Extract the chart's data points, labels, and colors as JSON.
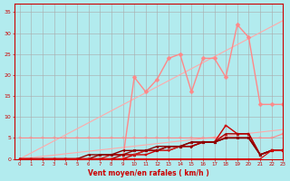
{
  "background_color": "#b2ebee",
  "grid_color": "#aaaaaa",
  "xlabel": "Vent moyen/en rafales ( km/h )",
  "xlabel_color": "#cc0000",
  "tick_color": "#cc0000",
  "x_values": [
    0,
    1,
    2,
    3,
    4,
    5,
    6,
    7,
    8,
    9,
    10,
    11,
    12,
    13,
    14,
    15,
    16,
    17,
    18,
    19,
    20,
    21,
    22,
    23
  ],
  "ylim": [
    0,
    37
  ],
  "xlim": [
    -0.5,
    23
  ],
  "yticks": [
    0,
    5,
    10,
    15,
    20,
    25,
    30,
    35
  ],
  "series": [
    {
      "y": [
        0,
        1.43,
        2.87,
        4.3,
        5.74,
        7.17,
        8.61,
        10.04,
        11.48,
        12.91,
        14.35,
        15.78,
        17.22,
        18.65,
        20.09,
        21.52,
        22.96,
        24.39,
        25.83,
        27.26,
        28.7,
        30.13,
        31.57,
        33.0
      ],
      "color": "#ffaaaa",
      "linewidth": 0.8,
      "marker": null,
      "markersize": 0
    },
    {
      "y": [
        0,
        0.3,
        0.61,
        0.91,
        1.22,
        1.52,
        1.83,
        2.13,
        2.43,
        2.74,
        3.04,
        3.35,
        3.65,
        3.96,
        4.26,
        4.57,
        4.87,
        5.17,
        5.48,
        5.78,
        6.09,
        6.39,
        6.7,
        7.0
      ],
      "color": "#ffaaaa",
      "linewidth": 0.8,
      "marker": null,
      "markersize": 0
    },
    {
      "y": [
        5,
        5,
        5,
        5,
        5,
        5,
        5,
        5,
        5,
        5,
        5,
        5,
        5,
        5,
        5,
        5,
        5,
        5,
        5,
        5,
        5,
        5,
        5,
        6
      ],
      "color": "#ff8888",
      "linewidth": 0.8,
      "marker": "+",
      "markersize": 3
    },
    {
      "y": [
        0,
        0,
        0,
        0,
        0,
        0,
        0,
        0,
        0,
        0,
        19.5,
        16,
        19,
        24,
        25,
        16,
        24,
        24,
        19.5,
        32,
        29,
        13,
        13,
        13
      ],
      "color": "#ff8888",
      "linewidth": 1.0,
      "marker": "D",
      "markersize": 2.5
    },
    {
      "y": [
        0,
        0,
        0,
        0,
        0,
        0,
        0,
        0,
        0,
        0,
        1,
        1,
        2,
        2,
        3,
        3,
        4,
        4,
        8,
        6,
        6,
        1,
        2,
        2
      ],
      "color": "#cc0000",
      "linewidth": 1.0,
      "marker": "s",
      "markersize": 2
    },
    {
      "y": [
        0,
        0,
        0,
        0,
        0,
        0,
        0,
        0,
        0,
        1,
        1,
        2,
        2,
        3,
        3,
        4,
        4,
        4,
        6,
        6,
        6,
        1,
        2,
        2
      ],
      "color": "#aa0000",
      "linewidth": 1.0,
      "marker": "^",
      "markersize": 2
    },
    {
      "y": [
        0,
        0,
        0,
        0,
        0,
        0,
        0,
        0,
        1,
        1,
        1,
        2,
        2,
        2,
        3,
        3,
        4,
        4,
        5,
        5,
        5,
        1,
        2,
        2
      ],
      "color": "#cc2222",
      "linewidth": 1.0,
      "marker": "v",
      "markersize": 2
    },
    {
      "y": [
        0,
        0,
        0,
        0,
        0,
        0,
        0,
        1,
        1,
        1,
        2,
        2,
        2,
        3,
        3,
        3,
        4,
        4,
        5,
        5,
        5,
        1,
        2,
        2
      ],
      "color": "#990000",
      "linewidth": 1.0,
      "marker": ">",
      "markersize": 2
    },
    {
      "y": [
        0,
        0,
        0,
        0,
        0,
        0,
        1,
        1,
        1,
        2,
        2,
        2,
        3,
        3,
        3,
        4,
        4,
        4,
        5,
        5,
        5,
        1,
        2,
        2
      ],
      "color": "#880000",
      "linewidth": 1.0,
      "marker": "<",
      "markersize": 2
    },
    {
      "y": [
        0,
        0,
        0,
        0,
        0,
        0,
        0,
        0,
        0,
        0,
        0,
        0,
        0,
        0,
        0,
        0,
        0,
        0,
        0,
        0,
        0,
        0,
        2,
        2
      ],
      "color": "#dd0000",
      "linewidth": 0.8,
      "marker": "D",
      "markersize": 1.5
    }
  ]
}
